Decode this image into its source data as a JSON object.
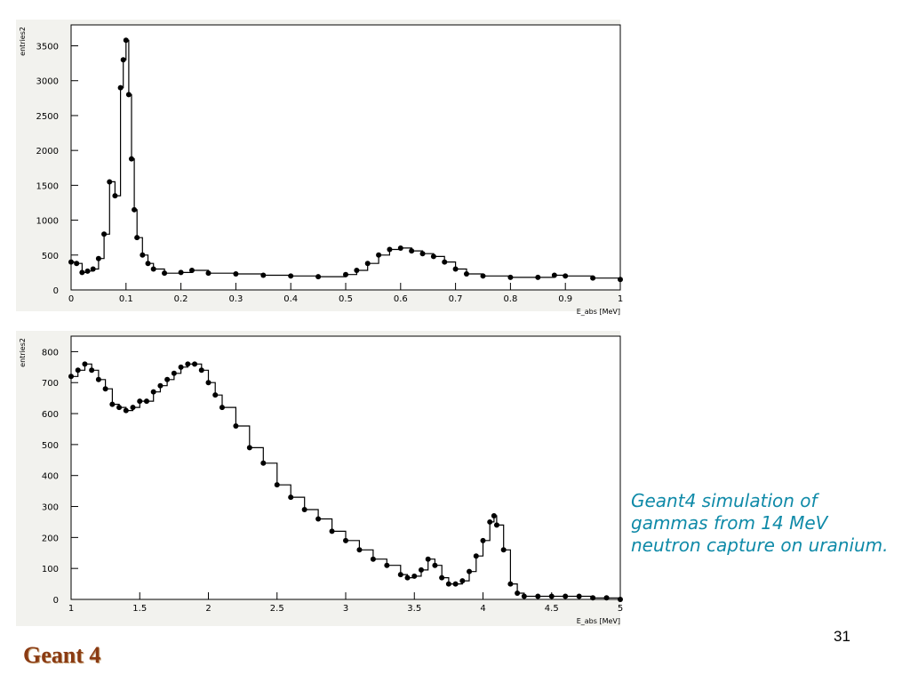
{
  "caption": "Geant4 simulation of gammas from 14 MeV neutron capture on uranium.",
  "page_number": "31",
  "footer_logo": "Geant 4",
  "colors": {
    "caption": "#0f8aa8",
    "logo": "#8a3a12",
    "plot_bg": "#ffffff",
    "line": "#000000"
  },
  "chart_data": [
    {
      "type": "line",
      "title": "",
      "xlabel": "E_abs [MeV]",
      "ylabel": "entries2",
      "xlim": [
        0,
        1
      ],
      "ylim": [
        0,
        3800
      ],
      "xticks": [
        0,
        0.1,
        0.2,
        0.3,
        0.4,
        0.5,
        0.6,
        0.7,
        0.8,
        0.9,
        1
      ],
      "xtick_labels": [
        "0",
        "0.1",
        "0.2",
        "0.3",
        "0.4",
        "0.5",
        "0.6",
        "0.7",
        "0.8",
        "0.9",
        "1"
      ],
      "yticks": [
        0,
        500,
        1000,
        1500,
        2000,
        2500,
        3000,
        3500
      ],
      "ytick_labels": [
        "0",
        "500",
        "1000",
        "1500",
        "2000",
        "2500",
        "3000",
        "3500"
      ],
      "series": [
        {
          "x": [
            0.0,
            0.01,
            0.02,
            0.03,
            0.04,
            0.05,
            0.06,
            0.07,
            0.08,
            0.09,
            0.095,
            0.1,
            0.105,
            0.11,
            0.115,
            0.12,
            0.13,
            0.14,
            0.15,
            0.17,
            0.2,
            0.22,
            0.25,
            0.3,
            0.35,
            0.4,
            0.45,
            0.5,
            0.52,
            0.54,
            0.56,
            0.58,
            0.6,
            0.62,
            0.64,
            0.66,
            0.68,
            0.7,
            0.72,
            0.75,
            0.8,
            0.85,
            0.88,
            0.9,
            0.95,
            1.0
          ],
          "y": [
            400,
            380,
            250,
            270,
            300,
            450,
            800,
            1550,
            1350,
            2900,
            3300,
            3580,
            2800,
            1880,
            1150,
            750,
            500,
            380,
            300,
            240,
            250,
            280,
            240,
            230,
            210,
            200,
            190,
            220,
            280,
            380,
            500,
            580,
            600,
            560,
            520,
            480,
            400,
            300,
            230,
            200,
            180,
            180,
            210,
            200,
            170,
            150
          ]
        }
      ]
    },
    {
      "type": "line",
      "title": "",
      "xlabel": "E_abs [MeV]",
      "ylabel": "entries2",
      "xlim": [
        1,
        5
      ],
      "ylim": [
        0,
        850
      ],
      "xticks": [
        1,
        1.5,
        2,
        2.5,
        3,
        3.5,
        4,
        4.5,
        5
      ],
      "xtick_labels": [
        "1",
        "1.5",
        "2",
        "2.5",
        "3",
        "3.5",
        "4",
        "4.5",
        "5"
      ],
      "yticks": [
        0,
        100,
        200,
        300,
        400,
        500,
        600,
        700,
        800
      ],
      "ytick_labels": [
        "0",
        "100",
        "200",
        "300",
        "400",
        "500",
        "600",
        "700",
        "800"
      ],
      "series": [
        {
          "x": [
            1.0,
            1.05,
            1.1,
            1.15,
            1.2,
            1.25,
            1.3,
            1.35,
            1.4,
            1.45,
            1.5,
            1.55,
            1.6,
            1.65,
            1.7,
            1.75,
            1.8,
            1.85,
            1.9,
            1.95,
            2.0,
            2.05,
            2.1,
            2.2,
            2.3,
            2.4,
            2.5,
            2.6,
            2.7,
            2.8,
            2.9,
            3.0,
            3.1,
            3.2,
            3.3,
            3.4,
            3.45,
            3.5,
            3.55,
            3.6,
            3.65,
            3.7,
            3.75,
            3.8,
            3.85,
            3.9,
            3.95,
            4.0,
            4.05,
            4.08,
            4.1,
            4.15,
            4.2,
            4.25,
            4.3,
            4.4,
            4.5,
            4.6,
            4.7,
            4.8,
            4.9,
            5.0
          ],
          "y": [
            720,
            740,
            760,
            740,
            710,
            680,
            630,
            620,
            610,
            620,
            640,
            640,
            670,
            690,
            710,
            730,
            750,
            760,
            760,
            740,
            700,
            660,
            620,
            560,
            490,
            440,
            370,
            330,
            290,
            260,
            220,
            190,
            160,
            130,
            110,
            80,
            70,
            75,
            95,
            130,
            110,
            70,
            50,
            50,
            60,
            90,
            140,
            190,
            250,
            270,
            240,
            160,
            50,
            20,
            10,
            10,
            10,
            10,
            10,
            5,
            5,
            0
          ]
        }
      ]
    }
  ]
}
